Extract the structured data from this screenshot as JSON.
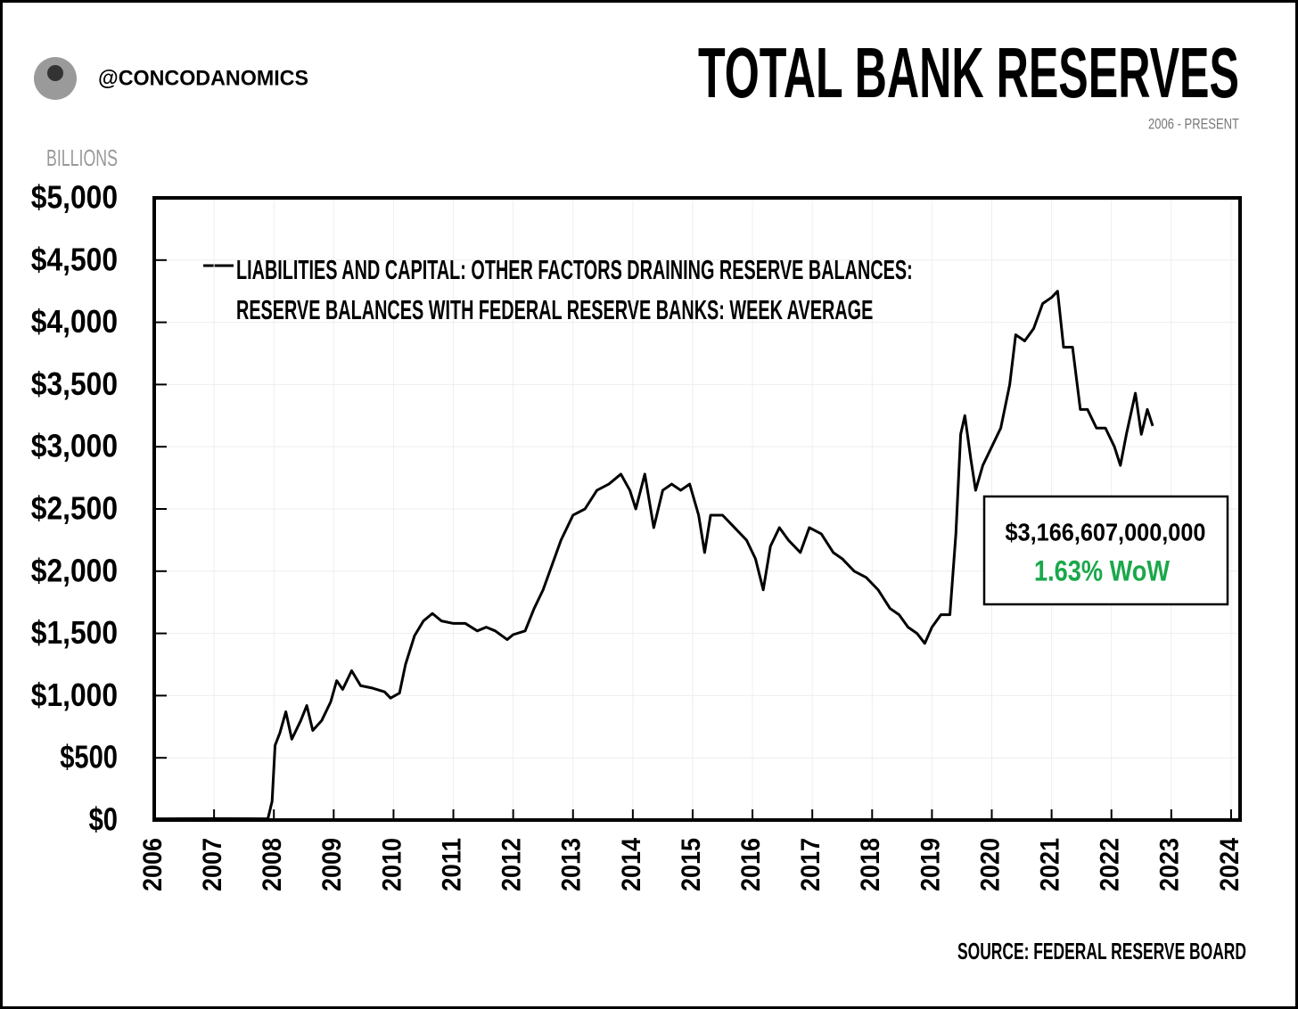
{
  "header": {
    "handle": "@CONCODANOMICS"
  },
  "footer": {
    "source": "SOURCE: FEDERAL RESERVE BOARD"
  },
  "chart_data": {
    "type": "line",
    "title": "TOTAL BANK RESERVES",
    "subtitle": "2006 - PRESENT",
    "y_label": "BILLIONS",
    "x": [
      2006,
      2007,
      2007.9,
      2007.97,
      2008.02,
      2008.1,
      2008.2,
      2008.3,
      2008.45,
      2008.55,
      2008.65,
      2008.8,
      2008.95,
      2009.05,
      2009.15,
      2009.3,
      2009.45,
      2009.65,
      2009.85,
      2009.95,
      2010.1,
      2010.2,
      2010.35,
      2010.5,
      2010.65,
      2010.8,
      2011.0,
      2011.2,
      2011.4,
      2011.55,
      2011.7,
      2011.9,
      2012.0,
      2012.2,
      2012.35,
      2012.5,
      2012.65,
      2012.8,
      2013.0,
      2013.2,
      2013.4,
      2013.6,
      2013.8,
      2013.95,
      2014.05,
      2014.2,
      2014.35,
      2014.5,
      2014.65,
      2014.8,
      2014.95,
      2015.1,
      2015.2,
      2015.3,
      2015.5,
      2015.7,
      2015.9,
      2016.05,
      2016.18,
      2016.3,
      2016.45,
      2016.6,
      2016.8,
      2016.95,
      2017.15,
      2017.35,
      2017.5,
      2017.7,
      2017.9,
      2018.1,
      2018.3,
      2018.45,
      2018.6,
      2018.75,
      2018.88,
      2019.0,
      2019.15,
      2019.3,
      2019.4,
      2019.48,
      2019.55,
      2019.65,
      2019.73,
      2019.85,
      2020.0,
      2020.15,
      2020.3,
      2020.4,
      2020.55,
      2020.7,
      2020.85,
      2021.0,
      2021.1,
      2021.2,
      2021.35,
      2021.48,
      2021.6,
      2021.75,
      2021.9,
      2022.05,
      2022.15,
      2022.25,
      2022.4,
      2022.5,
      2022.6,
      2022.69
    ],
    "series": [
      {
        "name": "LIABILITIES AND CAPITAL: OTHER FACTORS DRAINING RESERVE BALANCES: RESERVE BALANCES WITH FEDERAL RESERVE BANKS: WEEK AVERAGE",
        "color": "#000000",
        "values": [
          10,
          12,
          10,
          150,
          600,
          700,
          870,
          650,
          800,
          920,
          720,
          800,
          950,
          1120,
          1050,
          1200,
          1080,
          1060,
          1030,
          980,
          1020,
          1250,
          1480,
          1600,
          1660,
          1600,
          1580,
          1580,
          1520,
          1550,
          1520,
          1450,
          1490,
          1520,
          1700,
          1850,
          2050,
          2250,
          2450,
          2500,
          2650,
          2700,
          2780,
          2650,
          2500,
          2780,
          2350,
          2650,
          2700,
          2650,
          2700,
          2450,
          2150,
          2450,
          2450,
          2350,
          2250,
          2100,
          1850,
          2200,
          2350,
          2250,
          2150,
          2350,
          2300,
          2150,
          2100,
          2000,
          1950,
          1850,
          1700,
          1650,
          1550,
          1500,
          1420,
          1550,
          1650,
          1650,
          2300,
          3100,
          3250,
          2900,
          2650,
          2850,
          3000,
          3150,
          3500,
          3900,
          3850,
          3950,
          4150,
          4200,
          4250,
          3800,
          3800,
          3300,
          3300,
          3150,
          3150,
          3000,
          2850,
          3100,
          3430,
          3100,
          3300,
          3167
        ]
      }
    ],
    "annotations": {
      "value": "$3,166,607,000,000",
      "change": "1.63% WoW",
      "change_color": "#1aa84a"
    },
    "xlim": [
      2006,
      2024.15
    ],
    "xticks": [
      2006,
      2007,
      2008,
      2009,
      2010,
      2011,
      2012,
      2013,
      2014,
      2015,
      2016,
      2017,
      2018,
      2019,
      2020,
      2021,
      2022,
      2023,
      2024
    ],
    "ylim": [
      0,
      5000
    ],
    "yticks": [
      {
        "value": 0,
        "label": "$0"
      },
      {
        "value": 500,
        "label": "$500"
      },
      {
        "value": 1000,
        "label": "$1,000"
      },
      {
        "value": 1500,
        "label": "$1,500"
      },
      {
        "value": 2000,
        "label": "$2,000"
      },
      {
        "value": 2500,
        "label": "$2,500"
      },
      {
        "value": 3000,
        "label": "$3,000"
      },
      {
        "value": 3500,
        "label": "$3,500"
      },
      {
        "value": 4000,
        "label": "$4,000"
      },
      {
        "value": 4500,
        "label": "$4,500"
      },
      {
        "value": 5000,
        "label": "$5,000"
      }
    ],
    "grid": true
  }
}
